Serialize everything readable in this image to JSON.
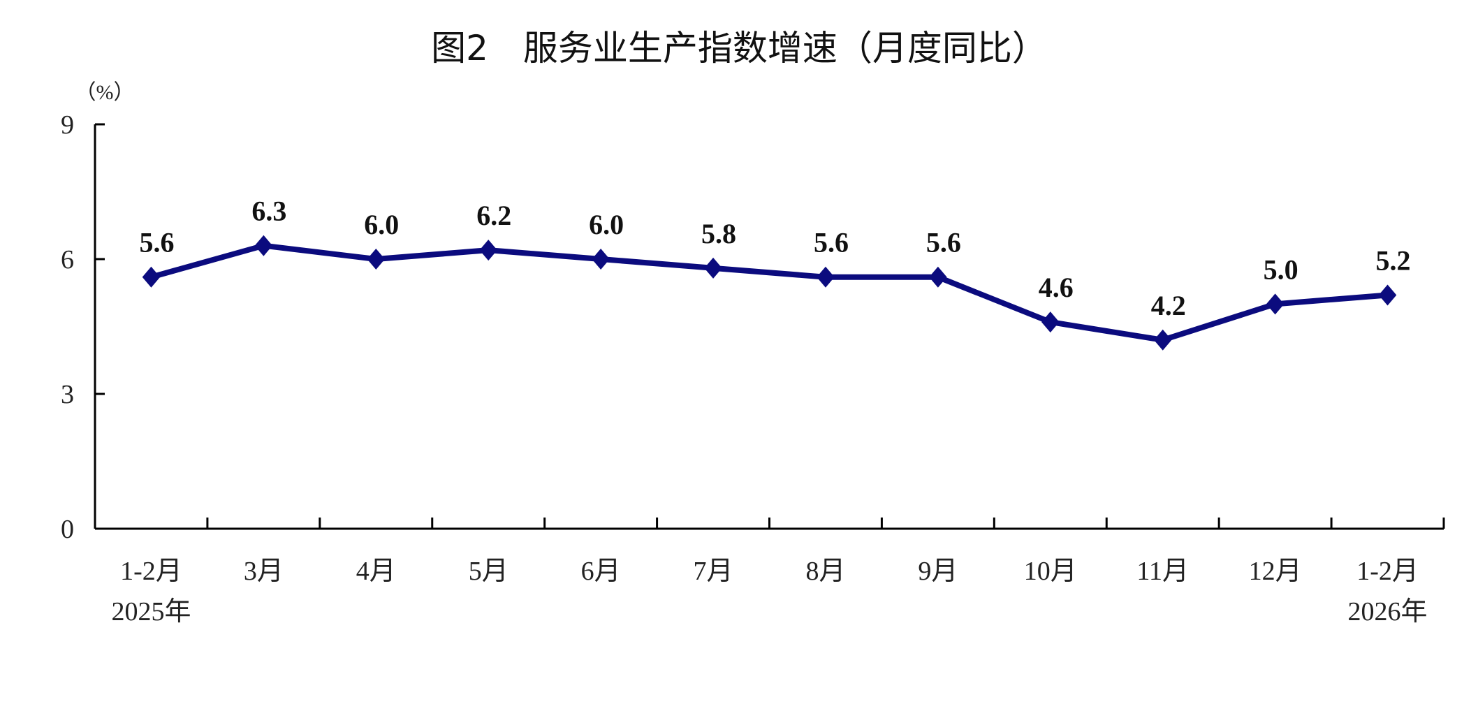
{
  "chart_data": {
    "type": "line",
    "title": "图2　服务业生产指数增速（月度同比）",
    "ylabel": "（%）",
    "xlabel": "",
    "ylim": [
      0,
      9
    ],
    "yticks": [
      0,
      3,
      6,
      9
    ],
    "grid": false,
    "categories": [
      [
        "1-2月",
        "2025年"
      ],
      [
        "3月"
      ],
      [
        "4月"
      ],
      [
        "5月"
      ],
      [
        "6月"
      ],
      [
        "7月"
      ],
      [
        "8月"
      ],
      [
        "9月"
      ],
      [
        "10月"
      ],
      [
        "11月"
      ],
      [
        "12月"
      ],
      [
        "1-2月",
        "2026年"
      ]
    ],
    "series": [
      {
        "values": [
          5.6,
          6.3,
          6.0,
          6.2,
          6.0,
          5.8,
          5.6,
          5.6,
          4.6,
          4.2,
          5.0,
          5.2
        ],
        "labels": [
          "5.6",
          "6.3",
          "6.0",
          "6.2",
          "6.0",
          "5.8",
          "5.6",
          "5.6",
          "4.6",
          "4.2",
          "5.0",
          "5.2"
        ],
        "color": "#0b0b7e",
        "marker": "diamond"
      }
    ]
  }
}
